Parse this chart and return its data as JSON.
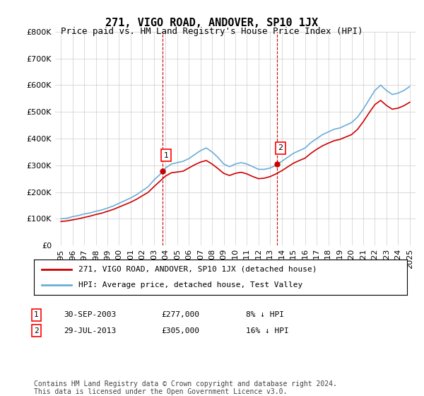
{
  "title": "271, VIGO ROAD, ANDOVER, SP10 1JX",
  "subtitle": "Price paid vs. HM Land Registry's House Price Index (HPI)",
  "ylabel": "",
  "xlabel": "",
  "ylim": [
    0,
    800000
  ],
  "yticks": [
    0,
    100000,
    200000,
    300000,
    400000,
    500000,
    600000,
    700000,
    800000
  ],
  "ytick_labels": [
    "£0",
    "£100K",
    "£200K",
    "£300K",
    "£400K",
    "£500K",
    "£600K",
    "£700K",
    "£800K"
  ],
  "hpi_color": "#6baed6",
  "price_color": "#cc0000",
  "vline_color": "#cc0000",
  "purchase1_date_x": 2003.75,
  "purchase1_price": 277000,
  "purchase2_date_x": 2013.58,
  "purchase2_price": 305000,
  "legend_label1": "271, VIGO ROAD, ANDOVER, SP10 1JX (detached house)",
  "legend_label2": "HPI: Average price, detached house, Test Valley",
  "table_row1": [
    "1",
    "30-SEP-2003",
    "£277,000",
    "8% ↓ HPI"
  ],
  "table_row2": [
    "2",
    "29-JUL-2013",
    "£305,000",
    "16% ↓ HPI"
  ],
  "footnote": "Contains HM Land Registry data © Crown copyright and database right 2024.\nThis data is licensed under the Open Government Licence v3.0.",
  "hpi_years": [
    1995,
    1995.5,
    1996,
    1996.5,
    1997,
    1997.5,
    1998,
    1998.5,
    1999,
    1999.5,
    2000,
    2000.5,
    2001,
    2001.5,
    2002,
    2002.5,
    2003,
    2003.5,
    2004,
    2004.5,
    2005,
    2005.5,
    2006,
    2006.5,
    2007,
    2007.5,
    2008,
    2008.5,
    2009,
    2009.5,
    2010,
    2010.5,
    2011,
    2011.5,
    2012,
    2012.5,
    2013,
    2013.5,
    2014,
    2014.5,
    2015,
    2015.5,
    2016,
    2016.5,
    2017,
    2017.5,
    2018,
    2018.5,
    2019,
    2019.5,
    2020,
    2020.5,
    2021,
    2021.5,
    2022,
    2022.5,
    2023,
    2023.5,
    2024,
    2024.5,
    2025
  ],
  "hpi_values": [
    100000,
    102000,
    108000,
    112000,
    118000,
    122000,
    128000,
    133000,
    140000,
    148000,
    158000,
    168000,
    178000,
    190000,
    205000,
    220000,
    245000,
    265000,
    290000,
    305000,
    310000,
    315000,
    325000,
    340000,
    355000,
    365000,
    350000,
    330000,
    305000,
    295000,
    305000,
    310000,
    305000,
    295000,
    285000,
    285000,
    290000,
    300000,
    315000,
    330000,
    345000,
    355000,
    365000,
    385000,
    400000,
    415000,
    425000,
    435000,
    440000,
    450000,
    460000,
    480000,
    510000,
    545000,
    580000,
    600000,
    580000,
    565000,
    570000,
    580000,
    595000
  ],
  "price_years": [
    1995,
    1995.5,
    1996,
    1996.5,
    1997,
    1997.5,
    1998,
    1998.5,
    1999,
    1999.5,
    2000,
    2000.5,
    2001,
    2001.5,
    2002,
    2002.5,
    2003,
    2003.5,
    2004,
    2004.5,
    2005,
    2005.5,
    2006,
    2006.5,
    2007,
    2007.5,
    2008,
    2008.5,
    2009,
    2009.5,
    2010,
    2010.5,
    2011,
    2011.5,
    2012,
    2012.5,
    2013,
    2013.5,
    2014,
    2014.5,
    2015,
    2015.5,
    2016,
    2016.5,
    2017,
    2017.5,
    2018,
    2018.5,
    2019,
    2019.5,
    2020,
    2020.5,
    2021,
    2021.5,
    2022,
    2022.5,
    2023,
    2023.5,
    2024,
    2024.5,
    2025
  ],
  "price_values": [
    90000,
    92000,
    96000,
    100000,
    105000,
    110000,
    116000,
    121000,
    128000,
    135000,
    144000,
    153000,
    162000,
    173000,
    186000,
    199000,
    220000,
    240000,
    260000,
    272000,
    275000,
    278000,
    290000,
    302000,
    312000,
    318000,
    305000,
    288000,
    270000,
    262000,
    270000,
    274000,
    268000,
    258000,
    250000,
    252000,
    258000,
    268000,
    280000,
    294000,
    308000,
    318000,
    327000,
    345000,
    360000,
    373000,
    383000,
    392000,
    397000,
    406000,
    415000,
    434000,
    463000,
    496000,
    527000,
    543000,
    524000,
    510000,
    514000,
    523000,
    536000
  ],
  "xlim": [
    1994.5,
    2025.5
  ],
  "xticks": [
    1995,
    1996,
    1997,
    1998,
    1999,
    2000,
    2001,
    2002,
    2003,
    2004,
    2005,
    2006,
    2007,
    2008,
    2009,
    2010,
    2011,
    2012,
    2013,
    2014,
    2015,
    2016,
    2017,
    2018,
    2019,
    2020,
    2021,
    2022,
    2023,
    2024,
    2025
  ],
  "background_color": "#ffffff",
  "grid_color": "#cccccc",
  "title_fontsize": 11,
  "subtitle_fontsize": 9,
  "tick_fontsize": 8
}
